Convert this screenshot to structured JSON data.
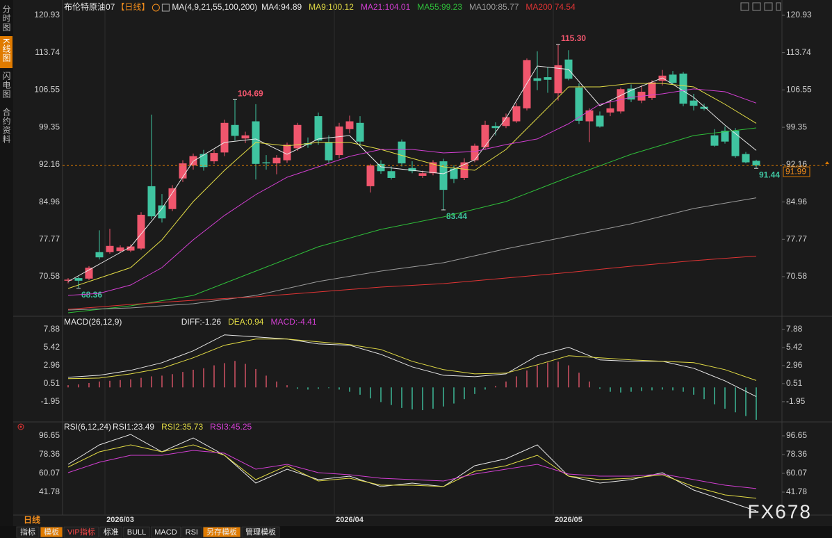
{
  "sidebar": [
    "分时图",
    "K线图",
    "闪电图",
    "合约资料"
  ],
  "toolbar": [
    "指标",
    "模板",
    "VIP指标",
    "标准",
    "BULL",
    "MACD",
    "RSI",
    "另存模板",
    "管理模板"
  ],
  "period": "日线",
  "watermark": "FX678",
  "chart_data": [
    {
      "type": "candlestick",
      "title": "布伦特原油07",
      "period_tag": "【日线】",
      "indicator": "MA(4,9,21,55,100,200)",
      "categories": [
        null,
        null,
        null,
        null,
        null,
        "2026/03",
        null,
        null,
        null,
        null,
        null,
        null,
        null,
        null,
        null,
        null,
        null,
        null,
        null,
        null,
        null,
        null,
        null,
        null,
        null,
        null,
        null,
        "2026/04",
        null,
        null,
        null,
        null,
        null,
        null,
        null,
        null,
        null,
        null,
        null,
        null,
        null,
        null,
        null,
        null,
        null,
        null,
        null,
        null,
        "2026/05",
        null,
        null,
        null,
        null,
        null,
        null,
        null,
        null,
        null,
        null,
        null,
        null,
        null,
        null,
        null,
        null,
        null,
        null
      ],
      "open": [
        69.8,
        70.3,
        70.2,
        75.3,
        75.3,
        75.5,
        75.6,
        76.0,
        88.0,
        84.3,
        83.6,
        89.5,
        92.0,
        94.2,
        92.8,
        94.5,
        99.8,
        97.2,
        100.5,
        92.6,
        92.4,
        93.0,
        95.3,
        96.3,
        101.5,
        96.5,
        94.0,
        99.0,
        100.2,
        88.0,
        92.3,
        90.9,
        96.6,
        91.5,
        90.0,
        90.5,
        92.8,
        91.4,
        89.6,
        93.0,
        95.5,
        99.6,
        99.6,
        100.5,
        103.0,
        108.8,
        109.0,
        105.9,
        112.4,
        107.0,
        100.5,
        101.6,
        102.2,
        102.4,
        106.8,
        104.5,
        105.0,
        108.3,
        109.5,
        109.7,
        104.5,
        103.3,
        97.8,
        98.7,
        98.7,
        94.2,
        92.9
      ],
      "high": [
        70.3,
        70.6,
        72.6,
        79.5,
        79.8,
        76.6,
        76.8,
        83.0,
        101.8,
        86.5,
        88.2,
        93.0,
        94.3,
        95.0,
        95.0,
        100.8,
        104.69,
        98.5,
        103.8,
        94.0,
        94.0,
        96.4,
        100.2,
        97.4,
        102.2,
        97.8,
        100.2,
        101.6,
        101.5,
        92.3,
        93.0,
        91.8,
        97.0,
        92.8,
        91.0,
        93.0,
        93.3,
        92.0,
        93.4,
        96.2,
        100.6,
        100.3,
        102.0,
        104.0,
        112.6,
        114.0,
        111.0,
        115.3,
        114.2,
        107.8,
        103.0,
        102.4,
        104.6,
        107.0,
        107.6,
        107.4,
        108.4,
        110.4,
        110.2,
        110.0,
        105.8,
        103.9,
        99.0,
        99.5,
        99.2,
        94.6,
        93.1
      ],
      "low": [
        69.3,
        68.36,
        69.9,
        73.9,
        75.0,
        75.2,
        75.3,
        75.7,
        81.7,
        81.0,
        83.2,
        88.8,
        91.2,
        91.0,
        92.3,
        93.8,
        96.8,
        96.3,
        89.3,
        91.2,
        90.3,
        92.5,
        94.8,
        95.4,
        96.0,
        92.4,
        93.4,
        98.2,
        95.8,
        86.8,
        90.4,
        89.3,
        91.8,
        90.5,
        89.6,
        90.1,
        83.44,
        88.6,
        89.2,
        92.6,
        95.0,
        97.8,
        99.2,
        100.2,
        102.6,
        106.5,
        106.0,
        104.5,
        108.4,
        100.0,
        96.5,
        99.3,
        101.5,
        102.0,
        104.2,
        104.0,
        104.6,
        107.4,
        107.6,
        103.4,
        102.6,
        102.6,
        95.6,
        96.2,
        93.5,
        92.4,
        91.44
      ],
      "close": [
        70.0,
        69.8,
        72.3,
        74.3,
        76.5,
        76.2,
        76.4,
        82.5,
        82.2,
        81.8,
        87.6,
        92.4,
        93.8,
        91.7,
        94.4,
        100.2,
        97.7,
        97.8,
        92.3,
        92.4,
        93.5,
        96.0,
        99.8,
        96.0,
        96.8,
        93.0,
        99.5,
        100.5,
        96.6,
        92.0,
        90.9,
        89.6,
        92.4,
        90.9,
        90.5,
        92.6,
        87.3,
        89.4,
        92.6,
        95.8,
        99.8,
        99.2,
        101.3,
        103.4,
        112.3,
        108.3,
        108.5,
        111.3,
        108.7,
        100.6,
        102.6,
        99.5,
        103.0,
        106.7,
        104.7,
        106.2,
        108.0,
        109.3,
        107.9,
        103.9,
        103.5,
        102.9,
        95.8,
        96.6,
        93.8,
        92.6,
        91.99
      ],
      "up_color": "#f0566d",
      "down_color": "#3fc4a0",
      "high_labels": {
        "16": "104.69",
        "47": "115.30"
      },
      "low_labels": {
        "1": "68.36",
        "36": "83.44",
        "66": "91.44"
      },
      "series": [
        {
          "name": "MA4:94.89",
          "color": "#e8e8e8",
          "x": [
            0,
            3,
            6,
            9,
            12,
            15,
            18,
            21,
            24,
            27,
            30,
            33,
            36,
            39,
            42,
            45,
            48,
            51,
            54,
            57,
            60,
            63,
            66
          ],
          "values": [
            69.64,
            72.99,
            76.34,
            83.7,
            92.81,
            96.43,
            97.1,
            94.15,
            97.1,
            97.76,
            91.74,
            91.07,
            90.4,
            93.08,
            101.11,
            111.15,
            110.49,
            103.52,
            106.47,
            108.88,
            105.13,
            99.77,
            94.89
          ]
        },
        {
          "name": "MA9:100.12",
          "color": "#e3dc45",
          "x": [
            0,
            3,
            6,
            9,
            12,
            15,
            18,
            21,
            24,
            27,
            30,
            33,
            36,
            39,
            42,
            45,
            48,
            51,
            54,
            57,
            60,
            63,
            66
          ],
          "values": [
            68.31,
            70.31,
            72.32,
            77.68,
            85.04,
            91.07,
            96.43,
            95.76,
            96.43,
            96.43,
            95.09,
            93.35,
            91.74,
            91.07,
            95.09,
            101.11,
            107.14,
            107.14,
            107.81,
            107.81,
            107.14,
            103.79,
            100.12
          ]
        },
        {
          "name": "MA21:104.01",
          "color": "#d23fd2",
          "x": [
            0,
            3,
            6,
            9,
            12,
            15,
            18,
            21,
            24,
            27,
            30,
            33,
            36,
            39,
            42,
            45,
            48,
            51,
            54,
            57,
            60,
            63,
            66
          ],
          "values": [
            66.97,
            67.37,
            68.97,
            72.32,
            77.68,
            82.37,
            86.38,
            89.73,
            91.74,
            93.75,
            95.09,
            95.09,
            94.42,
            94.68,
            96.02,
            97.1,
            100.04,
            103.79,
            105.13,
            105.8,
            106.74,
            106.2,
            104.01
          ]
        },
        {
          "name": "MA55:99.23",
          "color": "#2fbf3a",
          "x": [
            0,
            6,
            12,
            18,
            24,
            30,
            36,
            42,
            48,
            54,
            60,
            66
          ],
          "values": [
            63.62,
            64.96,
            66.97,
            71.65,
            76.34,
            79.69,
            82.1,
            85.04,
            89.73,
            94.15,
            97.76,
            99.23
          ]
        },
        {
          "name": "MA100:85.77",
          "color": "#9c9c9c",
          "x": [
            0,
            6,
            12,
            18,
            24,
            30,
            36,
            42,
            48,
            54,
            60,
            66
          ],
          "values": [
            64.15,
            64.56,
            65.36,
            66.97,
            69.64,
            71.65,
            73.26,
            75.94,
            78.35,
            80.76,
            83.7,
            85.77
          ]
        },
        {
          "name": "MA200:74.54",
          "color": "#e03434",
          "x": [
            0,
            6,
            12,
            18,
            24,
            30,
            36,
            42,
            48,
            54,
            60,
            66
          ],
          "values": [
            64.29,
            65.23,
            66.03,
            66.7,
            67.64,
            68.57,
            69.24,
            70.31,
            71.39,
            72.59,
            73.66,
            74.54
          ]
        }
      ],
      "ylim": [
        63.35,
        122.8
      ],
      "yticks": [
        120.93,
        113.74,
        106.55,
        99.35,
        92.16,
        84.96,
        77.77,
        70.58
      ]
    },
    {
      "type": "macd",
      "title": "MACD(26,12,9)",
      "histogram": {
        "name": "MACD:-4.41",
        "color": "#d23fd2",
        "up_color": "#e0566a",
        "down_color": "#3fc4a0",
        "values": [
          0.3,
          0.4,
          0.6,
          0.8,
          0.9,
          1.0,
          1.1,
          1.3,
          1.5,
          1.6,
          1.8,
          2.1,
          2.4,
          2.6,
          3.0,
          3.3,
          3.6,
          3.2,
          2.5,
          1.6,
          0.8,
          0.3,
          -0.2,
          -0.3,
          -0.2,
          -0.1,
          -0.3,
          -0.6,
          -1.0,
          -1.5,
          -2.0,
          -2.4,
          -2.8,
          -3.0,
          -3.1,
          -2.9,
          -2.6,
          -2.2,
          -1.6,
          -0.9,
          -0.3,
          0.2,
          0.8,
          1.5,
          2.3,
          3.0,
          3.4,
          3.5,
          3.0,
          2.0,
          0.8,
          -0.2,
          -0.6,
          -0.7,
          -0.6,
          -0.5,
          -0.4,
          -0.3,
          -0.4,
          -0.6,
          -1.0,
          -1.6,
          -2.3,
          -2.9,
          -3.4,
          -3.9,
          -4.41
        ]
      },
      "series": [
        {
          "name": "DIFF:-1.26",
          "color": "#e8e8e8",
          "x": [
            0,
            3,
            6,
            9,
            12,
            15,
            18,
            21,
            24,
            27,
            30,
            33,
            36,
            39,
            42,
            45,
            48,
            51,
            54,
            57,
            60,
            63,
            66
          ],
          "values": [
            1.37,
            1.65,
            2.32,
            3.36,
            4.98,
            7.16,
            6.88,
            6.59,
            5.93,
            5.74,
            4.5,
            2.79,
            1.65,
            1.46,
            1.84,
            4.31,
            5.45,
            3.74,
            3.55,
            3.55,
            2.6,
            0.89,
            -1.26
          ]
        },
        {
          "name": "DEA:0.94",
          "color": "#e3dc45",
          "x": [
            0,
            3,
            6,
            9,
            12,
            15,
            18,
            21,
            24,
            27,
            30,
            33,
            36,
            39,
            42,
            45,
            48,
            51,
            54,
            57,
            60,
            63,
            66
          ],
          "values": [
            1.18,
            1.27,
            1.84,
            2.6,
            4.03,
            5.74,
            6.59,
            6.59,
            6.21,
            5.83,
            5.16,
            3.55,
            2.41,
            1.84,
            1.94,
            3.08,
            4.31,
            4.03,
            3.74,
            3.55,
            3.36,
            2.41,
            0.94
          ]
        }
      ],
      "ylim": [
        -4.42,
        9.4
      ],
      "yticks": [
        7.88,
        5.42,
        2.96,
        0.51,
        -1.95
      ]
    },
    {
      "type": "rsi",
      "title": "RSI(6,12,24)",
      "series": [
        {
          "name": "RSI1:23.49",
          "color": "#e8e8e8",
          "x": [
            0,
            3,
            6,
            9,
            12,
            15,
            18,
            21,
            24,
            27,
            30,
            33,
            36,
            39,
            42,
            45,
            48,
            51,
            54,
            57,
            60,
            63,
            66
          ],
          "values": [
            68.87,
            87.84,
            98,
            81.07,
            94.62,
            77.68,
            50.58,
            64.13,
            53.97,
            57.35,
            47.19,
            50.58,
            47.19,
            67.52,
            74.29,
            87.84,
            57.35,
            50.58,
            53.97,
            60.74,
            43.81,
            33.64,
            23.49
          ]
        },
        {
          "name": "RSI2:35.73",
          "color": "#e3dc45",
          "x": [
            0,
            3,
            6,
            9,
            12,
            15,
            18,
            21,
            24,
            27,
            30,
            33,
            36,
            39,
            42,
            45,
            48,
            51,
            54,
            57,
            60,
            63,
            66
          ],
          "values": [
            66.16,
            81.07,
            87.84,
            81.07,
            87.84,
            77.68,
            53.97,
            67.52,
            52.61,
            55.32,
            48.55,
            48.55,
            47.19,
            62.1,
            67.52,
            77.68,
            57.35,
            53.97,
            55.32,
            58.71,
            47.19,
            39.06,
            35.73
          ]
        },
        {
          "name": "RSI3:45.25",
          "color": "#d23fd2",
          "x": [
            0,
            3,
            6,
            9,
            12,
            15,
            18,
            21,
            24,
            27,
            30,
            33,
            36,
            39,
            42,
            45,
            48,
            51,
            54,
            57,
            60,
            63,
            66
          ],
          "values": [
            60.74,
            70.91,
            77.68,
            77.68,
            82.42,
            79.71,
            64.13,
            68.87,
            60.74,
            58.71,
            55.32,
            53.97,
            52.61,
            59.39,
            64.13,
            68.87,
            59.39,
            57.35,
            57.35,
            59.39,
            53.97,
            48.55,
            45.25
          ]
        }
      ],
      "ylim": [
        20.1,
        106.8
      ],
      "yticks": [
        96.65,
        78.36,
        60.07,
        41.78
      ]
    }
  ]
}
